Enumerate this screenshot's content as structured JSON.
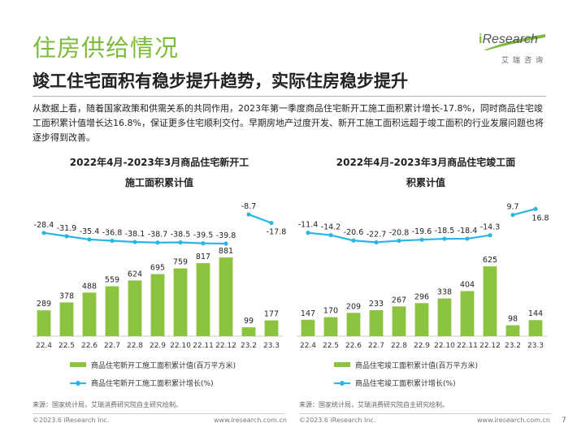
{
  "title": "住房供给情况",
  "subtitle": "竣工住宅面积有稳步提升趋势，实际住房稳步提升",
  "paragraph": "从数据上看，随着国家政策和供需关系的共同作用，2023年第一季度商品住宅新开工施工面积累计增长-17.8%，同时商品住宅竣工面积累计值增长达16.8%，保证更多住宅顺利交付。早期房地产过度开发、新开工施工面积远超于竣工面积的行业发展问题也将逐步得到改善。",
  "logo": {
    "word_i": "i",
    "word_rest": "Research",
    "sub": "艾瑞咨询"
  },
  "colors": {
    "brand_green": "#7dbb3c",
    "bar_green": "#8cc43f",
    "line_blue": "#29b6e6"
  },
  "left_chart": {
    "title_line1": "2022年4月-2023年3月商品住宅新开工",
    "title_line2": "施工面积累计值",
    "source": "来源：国家统计局，艾瑞消费研究院自主研究绘制。",
    "copyright": "©2023.6 iResearch Inc.",
    "website": "www.iresearch.com.cn"
  },
  "right_chart": {
    "title_line1": "2022年4月-2023年3月商品住宅竣工面",
    "title_line2": "积累计值",
    "source": "来源：国家统计局，艾瑞消费研究院自主研究绘制。",
    "copyright": "©2023.6 iResearch Inc.",
    "website": "www.iresearch.com.cn"
  },
  "page_number": "7",
  "chart_data": [
    {
      "type": "bar",
      "title": "2022年4月-2023年3月商品住宅新开工施工面积累计值",
      "categories": [
        "22.4",
        "22.5",
        "22.6",
        "22.7",
        "22.8",
        "22.9",
        "22.10",
        "22.11",
        "22.12",
        "23.2",
        "23.3"
      ],
      "series": [
        {
          "name": "商品住宅新开工施工面积累计值(百万平方米)",
          "type": "bar",
          "values": [
            289,
            378,
            488,
            559,
            624,
            695,
            759,
            817,
            881,
            99,
            177
          ]
        },
        {
          "name": "商品住宅新开工施工面积累计增长(%)",
          "type": "line",
          "values": [
            -28.4,
            -31.9,
            -35.4,
            -36.8,
            -38.1,
            -38.7,
            -38.5,
            -39.5,
            -39.8,
            -8.7,
            -17.8
          ],
          "labels": [
            "-28.4",
            "-31.9",
            "-35.4",
            "-36.8",
            "-38.1",
            "-38.7",
            "-38.5",
            "-39.5",
            "-39.8",
            "-8.7",
            "-17.8"
          ]
        }
      ],
      "bar_ylim": [
        0,
        1000
      ],
      "line_ylim": [
        -45,
        0
      ],
      "break_after_index": 8,
      "legend_placement": "bottom"
    },
    {
      "type": "bar",
      "title": "2022年4月-2023年3月商品住宅竣工面积累计值",
      "categories": [
        "22.4",
        "22.5",
        "22.6",
        "22.7",
        "22.8",
        "22.9",
        "22.10",
        "22.11",
        "22.12",
        "23.2",
        "23.3"
      ],
      "series": [
        {
          "name": "商品住宅竣工面积累计值(百万平方米)",
          "type": "bar",
          "values": [
            147,
            170,
            209,
            233,
            267,
            296,
            338,
            404,
            625,
            98,
            144
          ]
        },
        {
          "name": "商品住宅竣工面积累计增长(%)",
          "type": "line",
          "values": [
            -11.4,
            -14.2,
            -20.6,
            -22.7,
            -20.8,
            -19.6,
            -18.5,
            -18.4,
            -14.3,
            9.7,
            16.8
          ],
          "labels": [
            "-11.4",
            "-14.2",
            "-20.6",
            "-22.7",
            "-20.8",
            "-19.6",
            "-18.5",
            "-18.4",
            "-14.3",
            "9.7",
            "16.8"
          ]
        }
      ],
      "bar_ylim": [
        0,
        800
      ],
      "line_ylim": [
        -30,
        20
      ],
      "break_after_index": 8,
      "legend_placement": "bottom"
    }
  ]
}
